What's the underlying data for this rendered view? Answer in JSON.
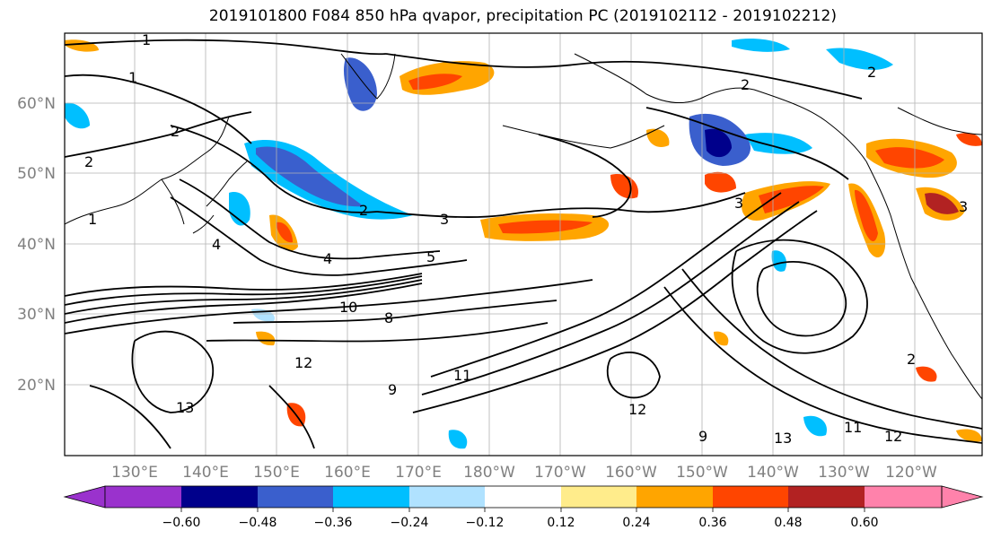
{
  "title": "2019101800 F084 850 hPa qvapor, precipitation PC (2019102112 - 2019102212)",
  "map": {
    "lat_labels": [
      "60°N",
      "50°N",
      "40°N",
      "30°N",
      "20°N"
    ],
    "lon_labels": [
      "130°E",
      "140°E",
      "150°E",
      "160°E",
      "170°E",
      "180°W",
      "170°W",
      "160°W",
      "150°W",
      "140°W",
      "130°W",
      "120°W"
    ],
    "contour_labels": [
      "1",
      "1",
      "2",
      "2",
      "2",
      "2",
      "2",
      "3",
      "3",
      "3",
      "4",
      "5",
      "10",
      "8",
      "9",
      "12",
      "13",
      "11",
      "12",
      "13",
      "11",
      "12",
      "9",
      "2",
      "4",
      "1"
    ]
  },
  "colorbar": {
    "colors": [
      "#9a32cd",
      "#00008b",
      "#3a5fcd",
      "#00bfff",
      "#b0e2ff",
      "#ffffff",
      "#ffec8b",
      "#ffa500",
      "#ff4500",
      "#b22222",
      "#ff82ab"
    ],
    "tick_labels": [
      "−0.60",
      "−0.48",
      "−0.36",
      "−0.24",
      "−0.12",
      "0.12",
      "0.24",
      "0.36",
      "0.48",
      "0.60"
    ]
  },
  "shading_colors": {
    "neg_light": "#b0e2ff",
    "neg_mid": "#00bfff",
    "neg_strong": "#3a5fcd",
    "neg_max": "#00008b",
    "pos_light": "#ffec8b",
    "pos_mid": "#ffa500",
    "pos_strong": "#ff4500",
    "pos_max": "#b22222"
  }
}
